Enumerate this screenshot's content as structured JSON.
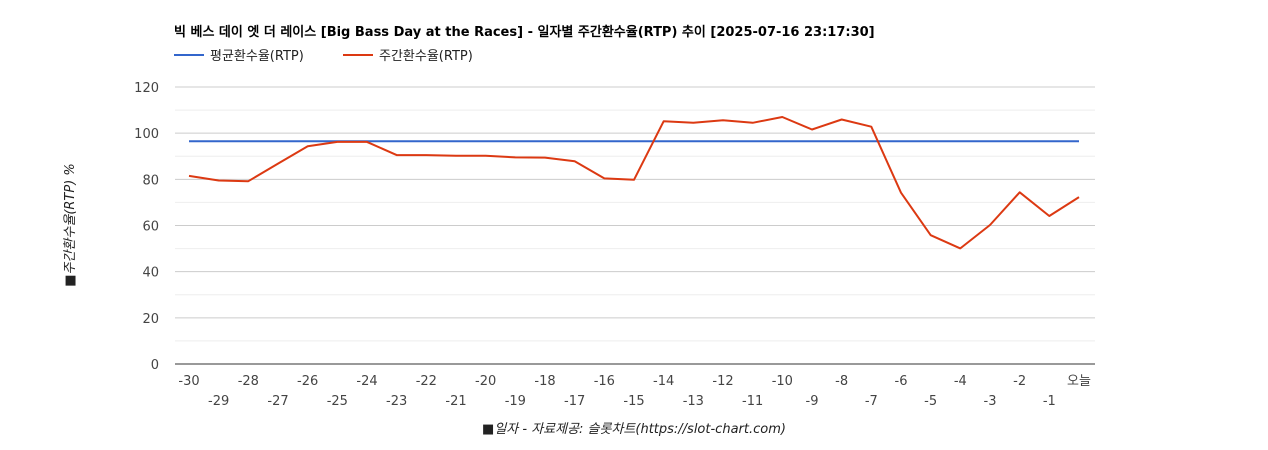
{
  "chart_data": {
    "type": "line",
    "title": "빅 베스 데이 엣 더 레이스 [Big Bass Day at the Races] - 일자별 주간환수율(RTP) 추이 [2025-07-16 23:17:30]",
    "xlabel": "■일자 - 자료제공: 슬롯차트(https://slot-chart.com)",
    "ylabel": "■주간환수율(RTP) %",
    "ylim": [
      0,
      120
    ],
    "yticks": [
      0,
      20,
      40,
      60,
      80,
      100,
      120
    ],
    "gridlines": true,
    "legend_position": "top-left",
    "categories": [
      "-30",
      "-29",
      "-28",
      "-27",
      "-26",
      "-25",
      "-24",
      "-23",
      "-22",
      "-21",
      "-20",
      "-19",
      "-18",
      "-17",
      "-16",
      "-15",
      "-14",
      "-13",
      "-12",
      "-11",
      "-10",
      "-9",
      "-8",
      "-7",
      "-6",
      "-5",
      "-4",
      "-3",
      "-2",
      "-1",
      "오늘"
    ],
    "series": [
      {
        "name": "평균환수율(RTP)",
        "color": "#3366cc",
        "values": [
          96.5,
          96.5,
          96.5,
          96.5,
          96.5,
          96.5,
          96.5,
          96.5,
          96.5,
          96.5,
          96.5,
          96.5,
          96.5,
          96.5,
          96.5,
          96.5,
          96.5,
          96.5,
          96.5,
          96.5,
          96.5,
          96.5,
          96.5,
          96.5,
          96.5,
          96.5,
          96.5,
          96.5,
          96.5,
          96.5,
          96.5
        ]
      },
      {
        "name": "주간환수율(RTP)",
        "color": "#dc3912",
        "values": [
          81.5,
          79.5,
          79.2,
          86.8,
          94.3,
          96.2,
          96.2,
          90.5,
          90.5,
          90.2,
          90.2,
          89.5,
          89.4,
          87.8,
          80.4,
          79.8,
          105.2,
          104.5,
          105.6,
          104.5,
          107,
          101.6,
          105.9,
          102.8,
          74.2,
          55.8,
          50.1,
          60.2,
          74.4,
          64.1,
          72.3
        ]
      }
    ]
  }
}
